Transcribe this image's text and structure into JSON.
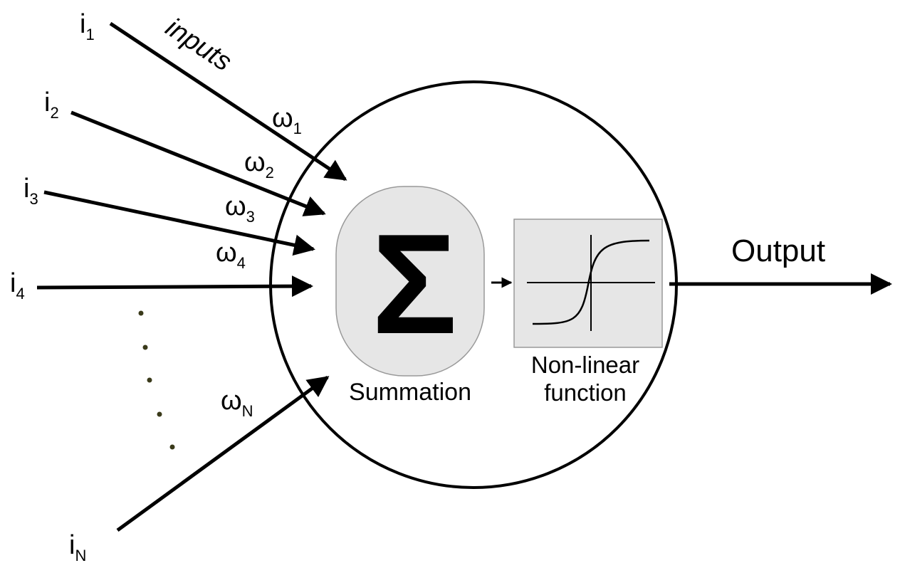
{
  "inputs": {
    "heading": "inputs",
    "items": [
      {
        "base": "i",
        "sub": "1"
      },
      {
        "base": "i",
        "sub": "2"
      },
      {
        "base": "i",
        "sub": "3"
      },
      {
        "base": "i",
        "sub": "4"
      },
      {
        "base": "i",
        "sub": "N"
      }
    ]
  },
  "weights": [
    {
      "base": "ω",
      "sub": "1"
    },
    {
      "base": "ω",
      "sub": "2"
    },
    {
      "base": "ω",
      "sub": "3"
    },
    {
      "base": "ω",
      "sub": "4"
    },
    {
      "base": "ω",
      "sub": "N"
    }
  ],
  "neuron": {
    "summation_symbol": "Σ",
    "summation_label": "Summation",
    "function_label_line1": "Non-linear",
    "function_label_line2": "function"
  },
  "output_label": "Output",
  "colors": {
    "stroke": "#000000",
    "box_fill": "#e6e6e6",
    "dots": "#3a3a1a"
  }
}
